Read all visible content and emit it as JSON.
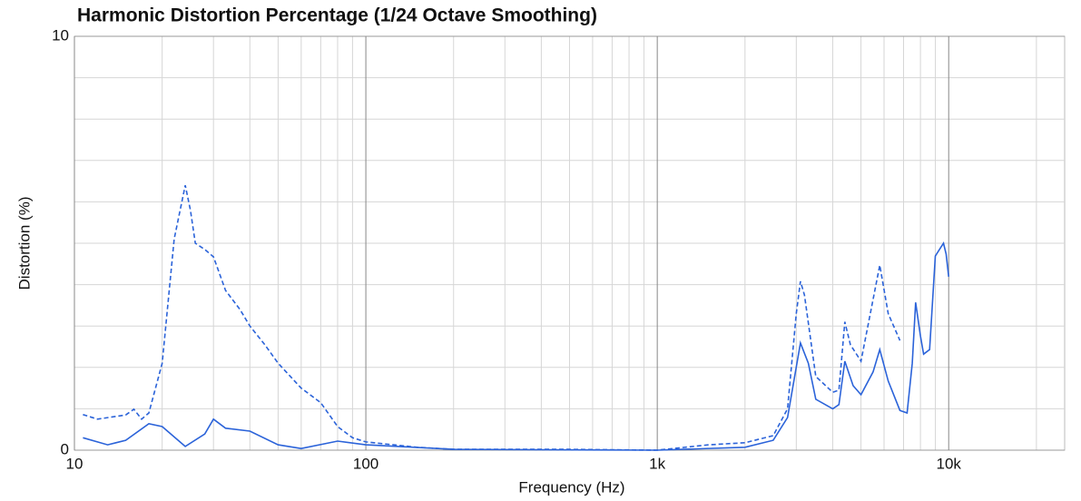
{
  "chart_data": {
    "type": "line",
    "title": "Harmonic Distortion Percentage (1/24 Octave Smoothing)",
    "x_label": "Frequency (Hz)",
    "y_label": "Distortion (%)",
    "xscale": "log",
    "xlim": [
      10,
      25000
    ],
    "ylim": [
      0,
      10
    ],
    "xticks": [
      10,
      100,
      {
        "value": 1000,
        "label": "1k"
      },
      {
        "value": 10000,
        "label": "10k"
      }
    ],
    "yticks": [
      0,
      10
    ],
    "xminor": [
      20,
      30,
      40,
      50,
      60,
      70,
      80,
      90,
      200,
      300,
      400,
      500,
      600,
      700,
      800,
      900,
      2000,
      3000,
      4000,
      5000,
      6000,
      7000,
      8000,
      9000,
      20000
    ],
    "yminor": [
      1,
      2,
      3,
      4,
      5,
      6,
      7,
      8,
      9
    ],
    "grid": true,
    "series": [
      {
        "color": "#2b63d9",
        "dash": true,
        "x": [
          10.7,
          12,
          15,
          16,
          17,
          18,
          20,
          22,
          24,
          25,
          26,
          28,
          30,
          33,
          37,
          40,
          45,
          50,
          60,
          70,
          80,
          90,
          100,
          150,
          200,
          500,
          1000,
          1500,
          2000,
          2500,
          2800,
          3000,
          3100,
          3200,
          3500,
          4000,
          4200,
          4400,
          4600,
          5000,
          5500,
          5800,
          6200,
          6800
        ],
        "values": [
          0.86,
          0.75,
          0.85,
          0.99,
          0.75,
          0.9,
          2.1,
          5.1,
          6.4,
          5.8,
          5.0,
          4.85,
          4.67,
          3.86,
          3.4,
          3.0,
          2.55,
          2.1,
          1.5,
          1.15,
          0.57,
          0.3,
          0.2,
          0.07,
          0.02,
          0.02,
          0,
          0.13,
          0.18,
          0.35,
          1.0,
          3.3,
          4.08,
          3.75,
          1.78,
          1.4,
          1.45,
          3.1,
          2.55,
          2.15,
          3.64,
          4.47,
          3.3,
          2.65
        ]
      },
      {
        "color": "#2b63d9",
        "dash": false,
        "x": [
          10.7,
          13,
          15,
          18,
          20,
          24,
          28,
          30,
          33,
          40,
          50,
          60,
          80,
          100,
          200,
          1000,
          2000,
          2500,
          2800,
          3100,
          3300,
          3500,
          4000,
          4200,
          4400,
          4700,
          5000,
          5500,
          5800,
          6200,
          6800,
          7200,
          7500,
          7700,
          8000,
          8200,
          8600,
          9000,
          9300,
          9600,
          9800,
          10000
        ],
        "values": [
          0.3,
          0.13,
          0.24,
          0.64,
          0.57,
          0.09,
          0.39,
          0.75,
          0.53,
          0.46,
          0.13,
          0.04,
          0.22,
          0.13,
          0.02,
          0,
          0.07,
          0.24,
          0.79,
          2.59,
          2.1,
          1.23,
          1.0,
          1.1,
          2.15,
          1.56,
          1.34,
          1.89,
          2.43,
          1.67,
          0.96,
          0.9,
          2.1,
          3.57,
          2.76,
          2.32,
          2.43,
          4.69,
          4.85,
          5.0,
          4.74,
          4.19
        ]
      }
    ]
  }
}
